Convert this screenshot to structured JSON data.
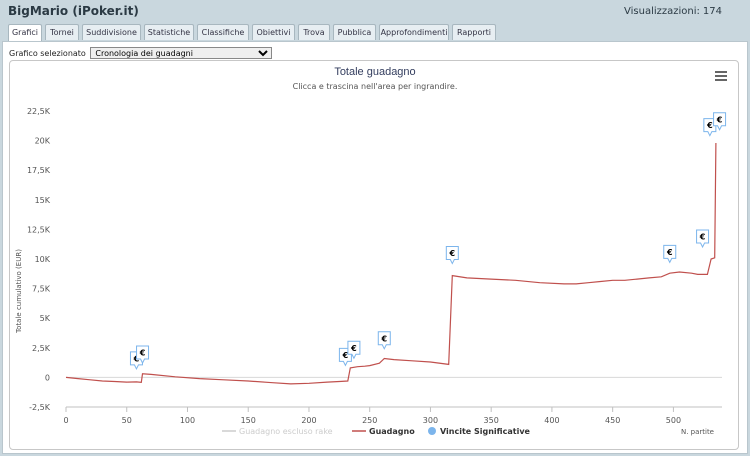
{
  "app": {
    "title": "BigMario (iPoker.it)",
    "views_label": "Visualizzazioni:",
    "views_count": "174"
  },
  "tabs": [
    {
      "label": "Grafici",
      "active": true
    },
    {
      "label": "Tornei"
    },
    {
      "label": "Suddivisione"
    },
    {
      "label": "Statistiche"
    },
    {
      "label": "Classifiche"
    },
    {
      "label": "Obiettivi"
    },
    {
      "label": "Trova"
    },
    {
      "label": "Pubblica"
    },
    {
      "label": "Approfondimenti"
    },
    {
      "label": "Rapporti"
    }
  ],
  "selector": {
    "label": "Grafico selezionato",
    "selected": "Cronologia dei guadagni"
  },
  "chart_data": {
    "type": "line",
    "title": "Totale guadagno",
    "subtitle": "Clicca e trascina nell'area per ingrandire.",
    "xlabel": "N. partite",
    "ylabel": "Totale cumulativo (EUR)",
    "xlim": [
      0,
      540
    ],
    "ylim": [
      -2500,
      22500
    ],
    "x_ticks": [
      "0",
      "50",
      "100",
      "150",
      "200",
      "250",
      "300",
      "350",
      "400",
      "450",
      "500"
    ],
    "y_ticks": [
      "-2,5K",
      "0",
      "2,5K",
      "5K",
      "7,5K",
      "10K",
      "12,5K",
      "15K",
      "17,5K",
      "20K",
      "22,5K"
    ],
    "series": [
      {
        "name": "Guadagno escluso rake",
        "color": "#cccccc",
        "visible": false
      },
      {
        "name": "Guadagno",
        "color": "#c0504d",
        "x": [
          0,
          10,
          20,
          30,
          40,
          50,
          58,
          62,
          63,
          70,
          90,
          110,
          130,
          150,
          170,
          185,
          200,
          215,
          225,
          232,
          234,
          240,
          246,
          250,
          258,
          262,
          270,
          285,
          300,
          315,
          318,
          330,
          350,
          370,
          390,
          410,
          420,
          430,
          440,
          450,
          460,
          470,
          480,
          490,
          497,
          505,
          515,
          520,
          528,
          531,
          534,
          535
        ],
        "y": [
          0,
          -100,
          -200,
          -300,
          -350,
          -400,
          -380,
          -420,
          300,
          250,
          50,
          -100,
          -200,
          -300,
          -450,
          -550,
          -500,
          -400,
          -350,
          -300,
          800,
          900,
          950,
          1000,
          1200,
          1600,
          1500,
          1400,
          1300,
          1100,
          8600,
          8400,
          8300,
          8200,
          8000,
          7900,
          7900,
          8000,
          8100,
          8200,
          8200,
          8300,
          8400,
          8500,
          8800,
          8900,
          8800,
          8700,
          8700,
          10000,
          10100,
          19800
        ]
      },
      {
        "name": "Vincite Significative",
        "color": "#7cb5ec",
        "markers": [
          {
            "x": 58,
            "y": 800,
            "label": "€"
          },
          {
            "x": 63,
            "y": 1300,
            "label": "€"
          },
          {
            "x": 230,
            "y": 1100,
            "label": "€"
          },
          {
            "x": 237,
            "y": 1700,
            "label": "€"
          },
          {
            "x": 262,
            "y": 2500,
            "label": "€"
          },
          {
            "x": 318,
            "y": 9700,
            "label": "€"
          },
          {
            "x": 497,
            "y": 9800,
            "label": "€"
          },
          {
            "x": 524,
            "y": 11100,
            "label": "€"
          },
          {
            "x": 530,
            "y": 20500,
            "label": "€"
          },
          {
            "x": 538,
            "y": 21000,
            "label": "€"
          }
        ]
      }
    ],
    "legend_position": "bottom-center",
    "grid": false
  }
}
